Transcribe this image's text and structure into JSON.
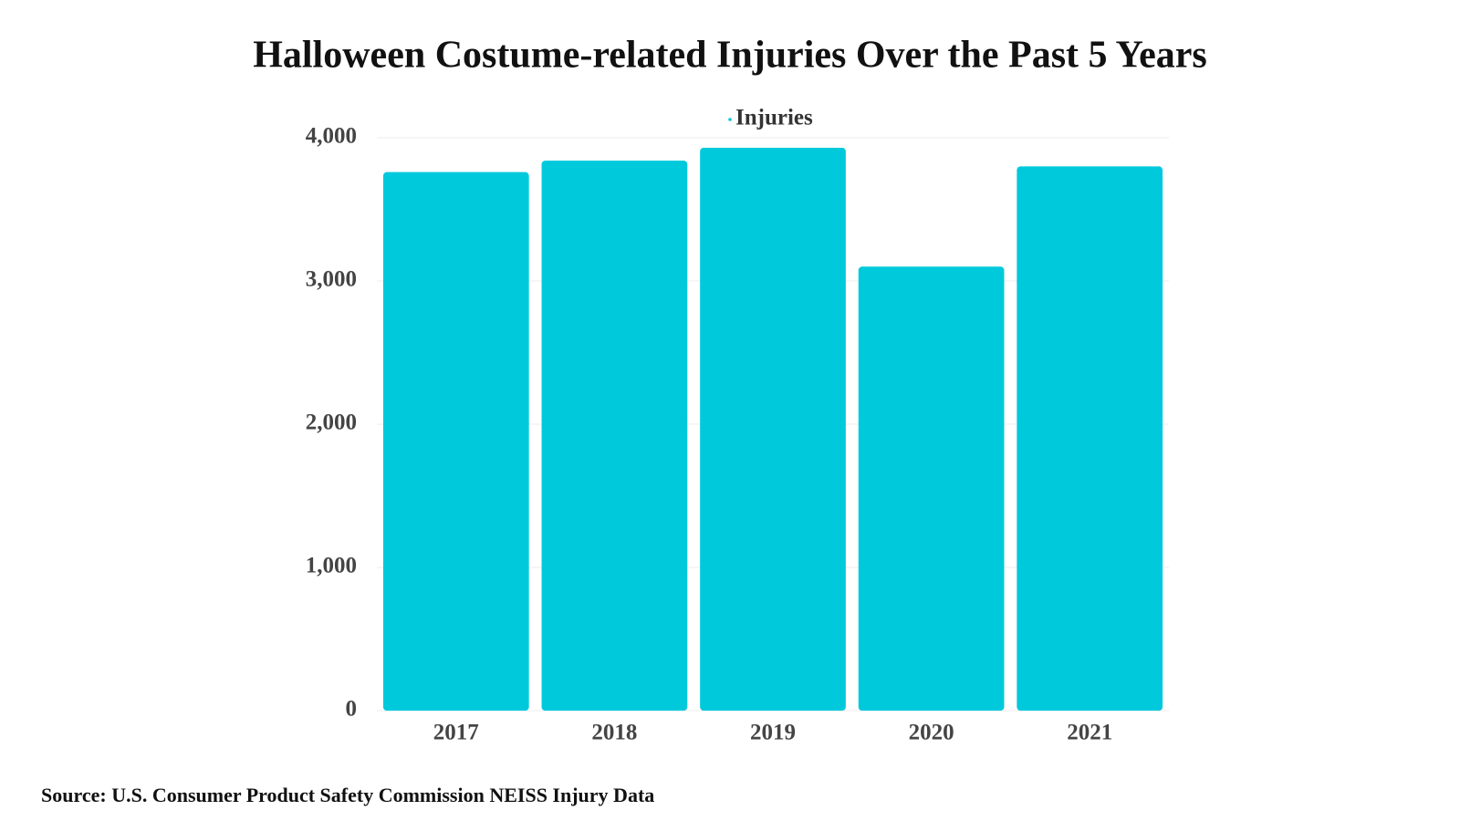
{
  "chart_data": {
    "type": "bar",
    "title": "Halloween Costume-related Injuries Over the Past 5 Years",
    "source": "Source: U.S. Consumer Product Safety Commission NEISS Injury Data",
    "categories": [
      "2017",
      "2018",
      "2019",
      "2020",
      "2021"
    ],
    "series": [
      {
        "name": "Injuries",
        "color": "#00c9dc",
        "values": [
          3760,
          3840,
          3930,
          3100,
          3800
        ]
      }
    ],
    "ylim": [
      0,
      4000
    ],
    "yticks": [
      0,
      {
        "value": 1000,
        "label": "1,000"
      },
      {
        "value": 2000,
        "label": "2,000"
      },
      {
        "value": 3000,
        "label": "3,000"
      },
      {
        "value": 4000,
        "label": "4,000"
      }
    ],
    "grid": true,
    "legend": "top"
  }
}
